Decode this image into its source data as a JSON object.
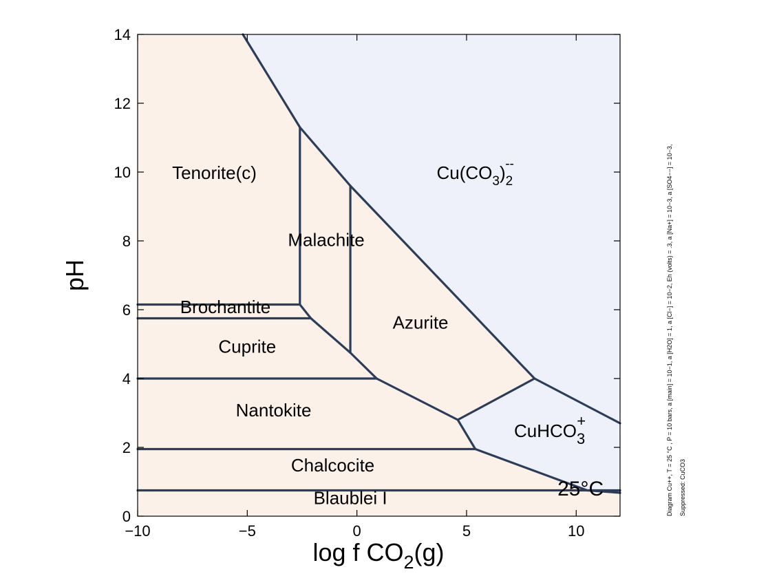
{
  "chart_data": {
    "type": "phase-diagram",
    "xlabel": {
      "main": "log f CO",
      "sub": "2",
      "tail": "(g)"
    },
    "ylabel": "pH",
    "xlim": [
      -10,
      12
    ],
    "ylim": [
      0,
      14
    ],
    "xticks": [
      -10,
      -5,
      0,
      5,
      10
    ],
    "xtick_labels": [
      "−10",
      "−5",
      "0",
      "5",
      "10"
    ],
    "yticks": [
      0,
      2,
      4,
      6,
      8,
      10,
      12,
      14
    ],
    "ytick_labels": [
      "0",
      "2",
      "4",
      "6",
      "8",
      "10",
      "12",
      "14"
    ],
    "colors": {
      "mineral": "#fbf1e9",
      "aqueous": "#eef1f9",
      "boundary": "#2b3d58"
    },
    "regions": [
      {
        "name": "Tenorite(c)",
        "kind": "mineral",
        "label_at": [
          -6.5,
          9.8
        ],
        "polygon": [
          [
            -10,
            14
          ],
          [
            -5.2,
            14
          ],
          [
            -2.6,
            11.3
          ],
          [
            -2.6,
            6.15
          ],
          [
            -10,
            6.15
          ]
        ]
      },
      {
        "name": "Malachite",
        "kind": "mineral",
        "label_at": [
          -1.4,
          7.85
        ],
        "polygon": [
          [
            -2.6,
            11.3
          ],
          [
            -0.3,
            9.6
          ],
          [
            -0.3,
            4.75
          ],
          [
            -2.1,
            5.75
          ],
          [
            -2.6,
            6.15
          ]
        ]
      },
      {
        "name": "Brochantite",
        "kind": "mineral",
        "label_at": [
          -6.0,
          5.9
        ],
        "polygon": [
          [
            -10,
            6.15
          ],
          [
            -2.6,
            6.15
          ],
          [
            -2.1,
            5.75
          ],
          [
            -10,
            5.75
          ]
        ]
      },
      {
        "name": "Cuprite",
        "kind": "mineral",
        "label_at": [
          -5.0,
          4.75
        ],
        "polygon": [
          [
            -10,
            5.75
          ],
          [
            -2.1,
            5.75
          ],
          [
            -0.3,
            4.75
          ],
          [
            0.9,
            4.0
          ],
          [
            -10,
            4.0
          ]
        ]
      },
      {
        "name": "Azurite",
        "kind": "mineral",
        "label_at": [
          2.9,
          5.45
        ],
        "polygon": [
          [
            -0.3,
            9.6
          ],
          [
            8.1,
            4.0
          ],
          [
            4.6,
            2.8
          ],
          [
            0.9,
            4.0
          ],
          [
            -0.3,
            4.75
          ]
        ]
      },
      {
        "name": "Nantokite",
        "kind": "mineral",
        "label_at": [
          -3.8,
          2.9
        ],
        "polygon": [
          [
            -10,
            4.0
          ],
          [
            0.9,
            4.0
          ],
          [
            4.6,
            2.8
          ],
          [
            5.4,
            1.95
          ],
          [
            -10,
            1.95
          ]
        ]
      },
      {
        "name": "Chalcocite",
        "kind": "mineral",
        "label_at": [
          -1.1,
          1.3
        ],
        "polygon": [
          [
            -10,
            1.95
          ],
          [
            5.4,
            1.95
          ],
          [
            10.5,
            0.75
          ],
          [
            -10,
            0.75
          ]
        ]
      },
      {
        "name": "Blaublei I",
        "kind": "mineral",
        "label_at": [
          -0.3,
          0.35
        ],
        "polygon": [
          [
            -10,
            0.75
          ],
          [
            12,
            0.75
          ],
          [
            12,
            0
          ],
          [
            -10,
            0
          ]
        ]
      },
      {
        "name": "Cu(CO3)2--",
        "kind": "aqueous",
        "label_at": [
          5.4,
          9.8
        ],
        "polygon": [
          [
            -5.2,
            14
          ],
          [
            12,
            14
          ],
          [
            12,
            2.7
          ],
          [
            8.1,
            4.0
          ],
          [
            -0.3,
            9.6
          ],
          [
            -2.6,
            11.3
          ]
        ]
      },
      {
        "name": "CuHCO3+",
        "kind": "aqueous",
        "label_at": [
          8.8,
          2.3
        ],
        "polygon": [
          [
            8.1,
            4.0
          ],
          [
            12,
            2.7
          ],
          [
            12,
            0.68
          ],
          [
            10.5,
            0.75
          ],
          [
            5.4,
            1.95
          ],
          [
            4.6,
            2.8
          ]
        ]
      }
    ],
    "labels": {
      "tenorite": "Tenorite(c)",
      "malachite": "Malachite",
      "brochantite": "Brochantite",
      "cuprite": "Cuprite",
      "azurite": "Azurite",
      "nantokite": "Nantokite",
      "chalcocite": "Chalcocite",
      "blaublei": "Blaublei I",
      "cuco3_main": "Cu(CO",
      "cuco3_sub1": "3",
      "cuco3_close": ")",
      "cuco3_sub2": "2",
      "cuco3_sup": "--",
      "cuhco3_main": "CuHCO",
      "cuhco3_sub": "3",
      "cuhco3_sup": "+"
    },
    "boundaries": [
      [
        [
          -5.2,
          14
        ],
        [
          -2.6,
          11.3
        ],
        [
          -0.3,
          9.6
        ],
        [
          8.1,
          4.0
        ],
        [
          12,
          2.7
        ]
      ],
      [
        [
          -2.6,
          11.3
        ],
        [
          -2.6,
          6.15
        ]
      ],
      [
        [
          -0.3,
          9.6
        ],
        [
          -0.3,
          4.75
        ]
      ],
      [
        [
          -10,
          6.15
        ],
        [
          -2.6,
          6.15
        ],
        [
          -2.1,
          5.75
        ],
        [
          -0.3,
          4.75
        ],
        [
          0.9,
          4.0
        ],
        [
          4.6,
          2.8
        ],
        [
          8.1,
          4.0
        ]
      ],
      [
        [
          -10,
          5.75
        ],
        [
          -2.1,
          5.75
        ]
      ],
      [
        [
          -10,
          4.0
        ],
        [
          0.9,
          4.0
        ]
      ],
      [
        [
          4.6,
          2.8
        ],
        [
          5.4,
          1.95
        ],
        [
          10.5,
          0.75
        ],
        [
          12,
          0.68
        ]
      ],
      [
        [
          -10,
          1.95
        ],
        [
          5.4,
          1.95
        ]
      ],
      [
        [
          -10,
          0.75
        ],
        [
          12,
          0.75
        ]
      ]
    ],
    "temperature_label": "25°C",
    "temperature_at": [
      10.2,
      0.6
    ],
    "side_note": {
      "line1": "Diagram Cu++, T = 25 °C , P = 10 bars, a [main] = 10−1, a [H2O] = 1, a [Cl−] = 10−2, Eh (volts) = .3, a [Na+] = 10−3, a [SO4−−] = 10−3,",
      "line2": "Suppressed: CuCO3"
    }
  }
}
